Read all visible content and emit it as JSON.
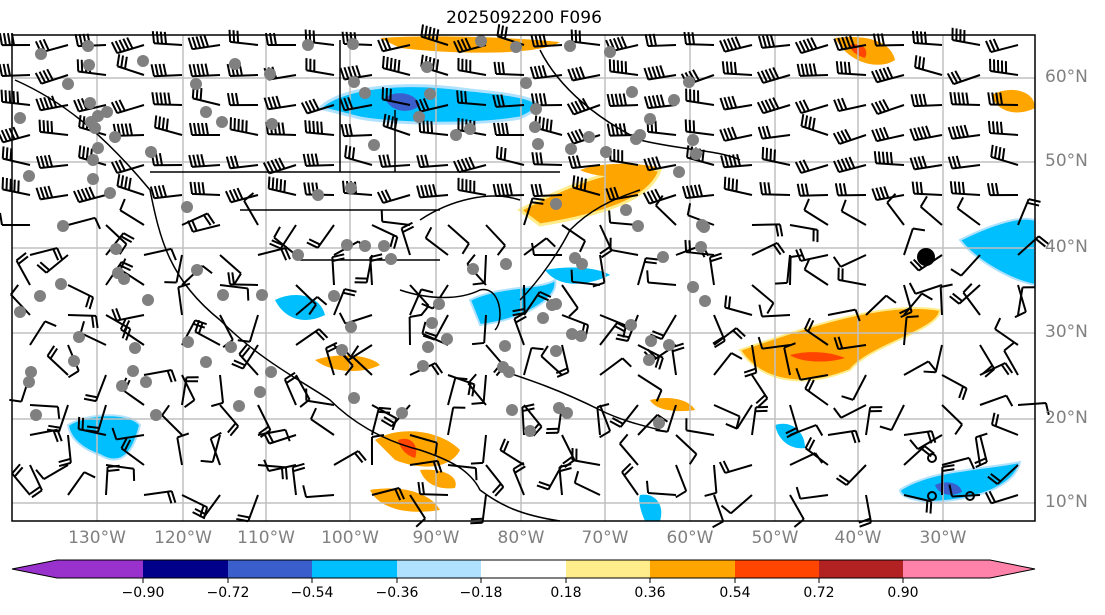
{
  "title": "2025092200 F096",
  "lat_labels": [
    "60°N",
    "50°N",
    "40°N",
    "30°N",
    "20°N",
    "10°N"
  ],
  "lon_labels": [
    "130°W",
    "120°W",
    "110°W",
    "100°W",
    "90°W",
    "80°W",
    "70°W",
    "60°W",
    "50°W",
    "40°W",
    "30°W"
  ],
  "colorbar": {
    "ticks": [
      "−0.90",
      "−0.72",
      "−0.54",
      "−0.36",
      "−0.18",
      "0.18",
      "0.36",
      "0.54",
      "0.72",
      "0.90"
    ],
    "colors": [
      "#9932cc",
      "#00008b",
      "#3a5fcd",
      "#00bfff",
      "#b0e2ff",
      "#ffffff",
      "#ffec8b",
      "#ffa500",
      "#ff4500",
      "#b22222",
      "#ff82ab"
    ]
  }
}
